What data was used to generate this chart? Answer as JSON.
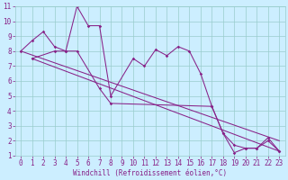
{
  "line1_x": [
    0,
    1,
    2,
    3,
    4,
    5,
    6,
    7,
    8,
    10,
    11,
    12,
    13,
    14,
    15,
    16,
    17,
    18,
    19,
    20,
    21,
    22,
    23
  ],
  "line1_y": [
    8,
    8.7,
    9.3,
    8.3,
    8.0,
    11.0,
    9.7,
    9.7,
    5.0,
    7.5,
    7.0,
    8.1,
    7.7,
    8.3,
    8.0,
    6.5,
    4.3,
    2.5,
    1.7,
    1.5,
    1.5,
    2.0,
    1.3
  ],
  "line2_x": [
    1,
    3,
    4,
    5,
    7,
    8,
    17,
    18,
    19,
    20,
    21,
    22,
    23
  ],
  "line2_y": [
    7.5,
    8.0,
    8.0,
    8.0,
    5.5,
    4.5,
    4.3,
    2.5,
    1.2,
    1.5,
    1.5,
    2.2,
    1.3
  ],
  "line3_x": [
    0,
    23
  ],
  "line3_y": [
    8.0,
    2.0
  ],
  "line4_x": [
    1,
    23
  ],
  "line4_y": [
    7.5,
    1.3
  ],
  "color": "#882288",
  "bg_color": "#cceeff",
  "grid_color": "#99cccc",
  "xlabel": "Windchill (Refroidissement éolien,°C)",
  "xlim": [
    -0.5,
    23.5
  ],
  "ylim": [
    1,
    11
  ],
  "xticks": [
    0,
    1,
    2,
    3,
    4,
    5,
    6,
    7,
    8,
    9,
    10,
    11,
    12,
    13,
    14,
    15,
    16,
    17,
    18,
    19,
    20,
    21,
    22,
    23
  ],
  "yticks": [
    1,
    2,
    3,
    4,
    5,
    6,
    7,
    8,
    9,
    10,
    11
  ],
  "tick_fontsize": 5.5,
  "xlabel_fontsize": 5.5
}
